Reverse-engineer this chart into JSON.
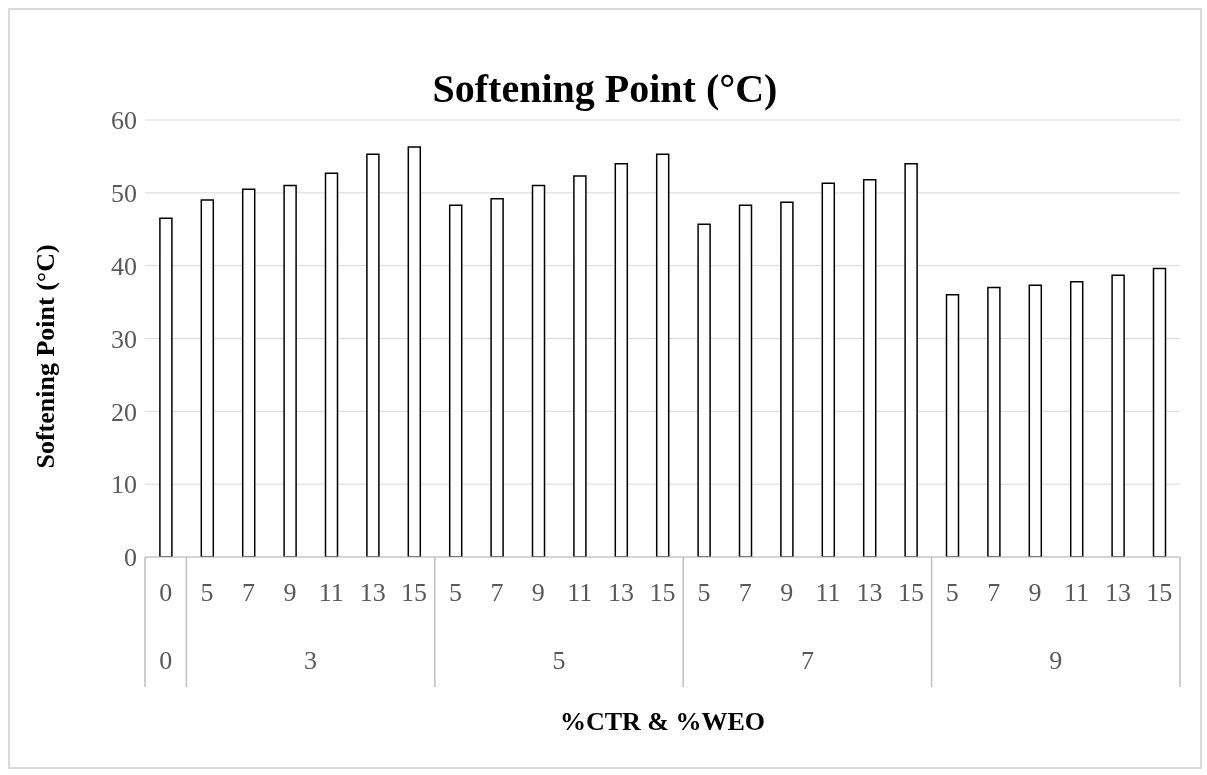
{
  "chart_data": {
    "type": "bar",
    "title": "Softening Point (°C)",
    "ylabel": "Softening Point (°C)",
    "xlabel": "%CTR & %WEO",
    "categories": [
      "0",
      "5",
      "7",
      "9",
      "11",
      "13",
      "15",
      "5",
      "7",
      "9",
      "11",
      "13",
      "15",
      "5",
      "7",
      "9",
      "11",
      "13",
      "15",
      "5",
      "7",
      "9",
      "11",
      "13",
      "15"
    ],
    "values": [
      46.5,
      49,
      50.5,
      51,
      52.7,
      55.3,
      56.3,
      48.3,
      49.2,
      51,
      52.3,
      54,
      55.3,
      45.7,
      48.3,
      48.7,
      51.3,
      51.8,
      54,
      36,
      37,
      37.3,
      37.8,
      38.7,
      39.6
    ],
    "color": "#ffffff",
    "ylim": [
      0,
      60
    ],
    "yticks": [
      0,
      10,
      20,
      30,
      40,
      50,
      60
    ],
    "grid": "y",
    "legend": false,
    "annotations": [
      "0",
      "3",
      "5",
      "7",
      "9"
    ]
  }
}
